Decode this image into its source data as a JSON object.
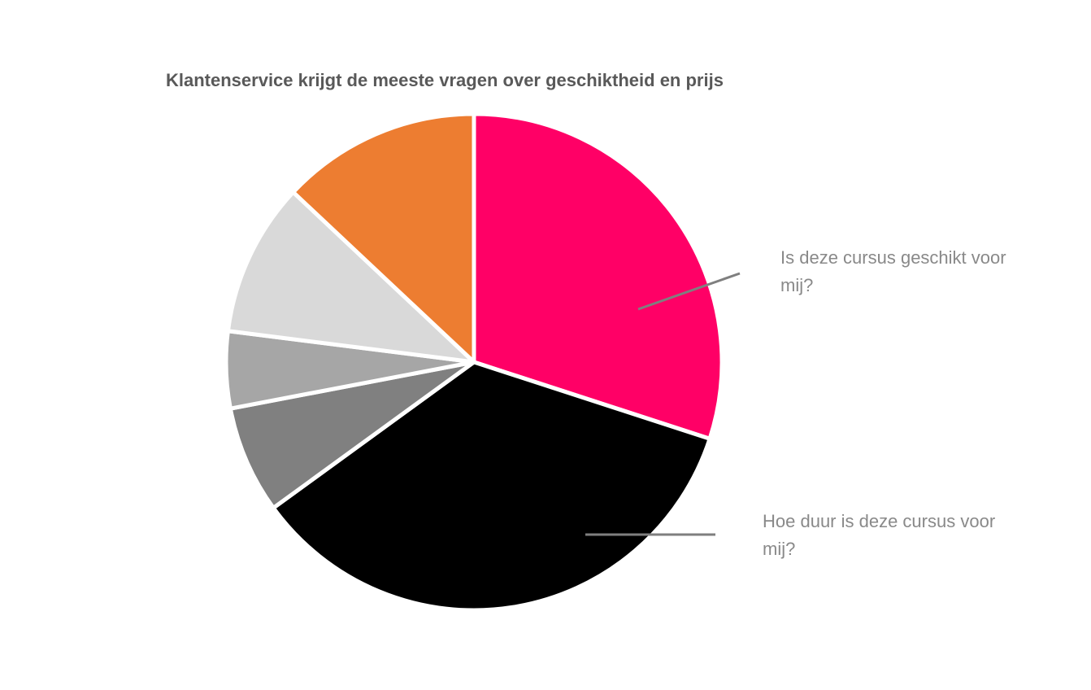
{
  "chart_data": {
    "type": "pie",
    "title": "Klantenservice krijgt de meeste vragen over geschiktheid en prijs",
    "categories": [
      "Is deze cursus geschikt voor mij?",
      "Hoe duur is deze cursus voor mij?",
      null,
      null,
      null,
      null
    ],
    "values": [
      30,
      35,
      7,
      5,
      10,
      13
    ],
    "colors": [
      "#ff0066",
      "#000000",
      "#808080",
      "#a6a6a6",
      "#d9d9d9",
      "#ed7d31"
    ]
  }
}
